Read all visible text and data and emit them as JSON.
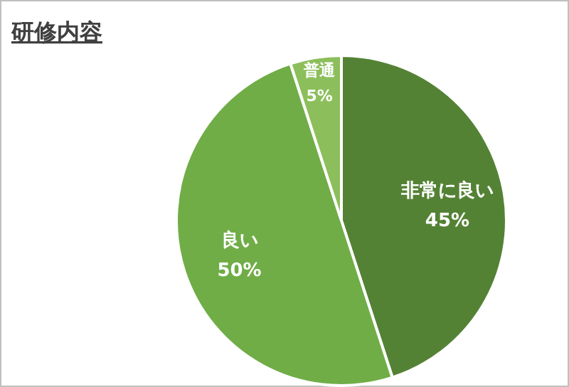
{
  "chart_data": {
    "type": "pie",
    "title": "研修内容",
    "categories": [
      "非常に良い",
      "良い",
      "普通"
    ],
    "values": [
      45,
      50,
      5
    ],
    "colors": [
      "#548235",
      "#70ad47",
      "#8cbf5c"
    ],
    "value_labels": [
      "45%",
      "50%",
      "5%"
    ]
  }
}
